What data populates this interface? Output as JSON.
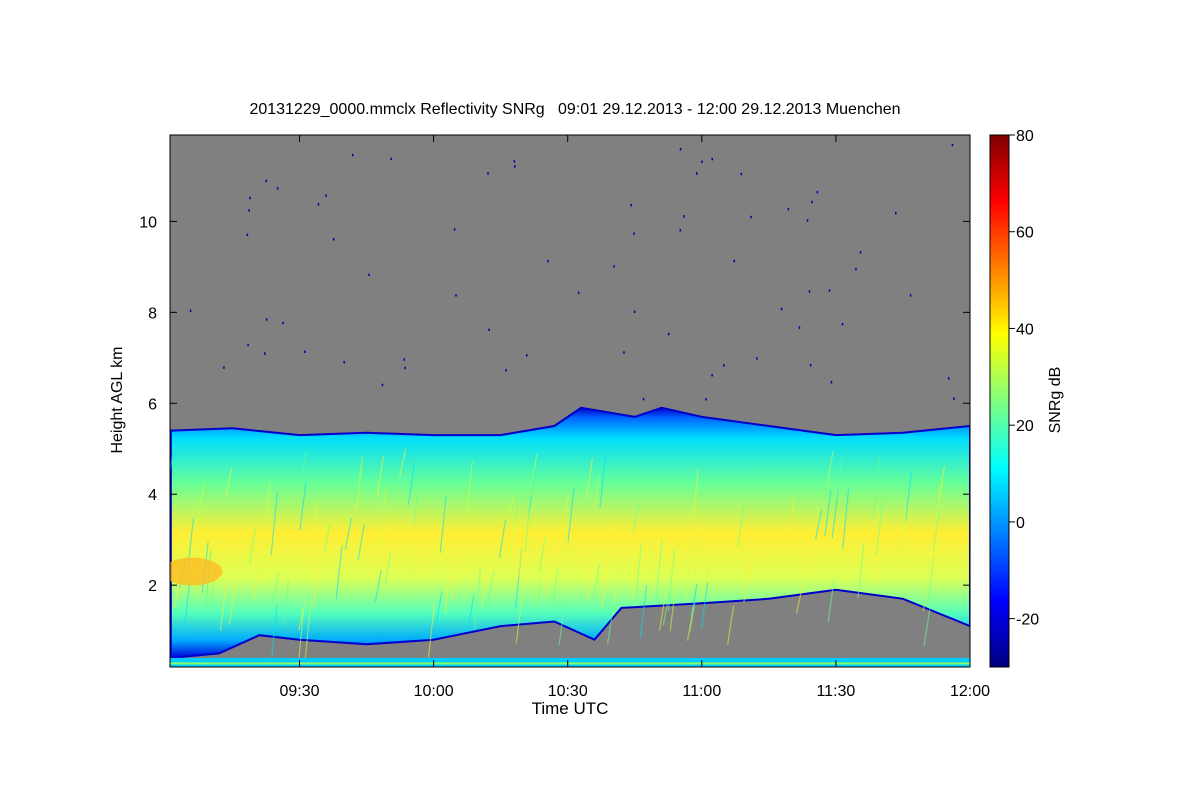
{
  "chart_data": {
    "type": "heatmap",
    "title": "20131229_0000.mmclx Reflectivity SNRg   09:01 29.12.2013 - 12:00 29.12.2013 Muenchen",
    "xlabel": "Time UTC",
    "ylabel": "Height AGL km",
    "colorbar_label": "SNRg dB",
    "x_ticks": [
      "09:30",
      "10:00",
      "10:30",
      "11:00",
      "11:30",
      "12:00"
    ],
    "x_tick_hours": [
      9.5,
      10.0,
      10.5,
      11.0,
      11.5,
      12.0
    ],
    "xlim_hours": [
      9.017,
      12.0
    ],
    "y_ticks": [
      2,
      4,
      6,
      8,
      10
    ],
    "ylim": [
      0.2,
      11.9
    ],
    "colorbar_ticks": [
      -20,
      0,
      20,
      40,
      60,
      80
    ],
    "colorbar_range": [
      -30,
      80
    ],
    "background_color": "#808080",
    "colormap": [
      "#00007f",
      "#0000ff",
      "#007fff",
      "#00ffff",
      "#7fff7f",
      "#ffff00",
      "#ff7f00",
      "#ff0000",
      "#7f0000"
    ],
    "echo_top_km": [
      [
        9.02,
        5.4
      ],
      [
        9.25,
        5.45
      ],
      [
        9.5,
        5.3
      ],
      [
        9.75,
        5.35
      ],
      [
        10.0,
        5.3
      ],
      [
        10.25,
        5.3
      ],
      [
        10.45,
        5.5
      ],
      [
        10.55,
        5.9
      ],
      [
        10.75,
        5.7
      ],
      [
        10.85,
        5.9
      ],
      [
        11.0,
        5.7
      ],
      [
        11.25,
        5.5
      ],
      [
        11.5,
        5.3
      ],
      [
        11.75,
        5.35
      ],
      [
        12.0,
        5.5
      ]
    ],
    "echo_base_km": [
      [
        9.02,
        0.4
      ],
      [
        9.2,
        0.5
      ],
      [
        9.35,
        0.9
      ],
      [
        9.5,
        0.8
      ],
      [
        9.75,
        0.7
      ],
      [
        10.0,
        0.8
      ],
      [
        10.25,
        1.1
      ],
      [
        10.45,
        1.2
      ],
      [
        10.6,
        0.8
      ],
      [
        10.7,
        1.5
      ],
      [
        11.0,
        1.6
      ],
      [
        11.25,
        1.7
      ],
      [
        11.5,
        1.9
      ],
      [
        11.75,
        1.7
      ],
      [
        12.0,
        1.1
      ]
    ]
  }
}
